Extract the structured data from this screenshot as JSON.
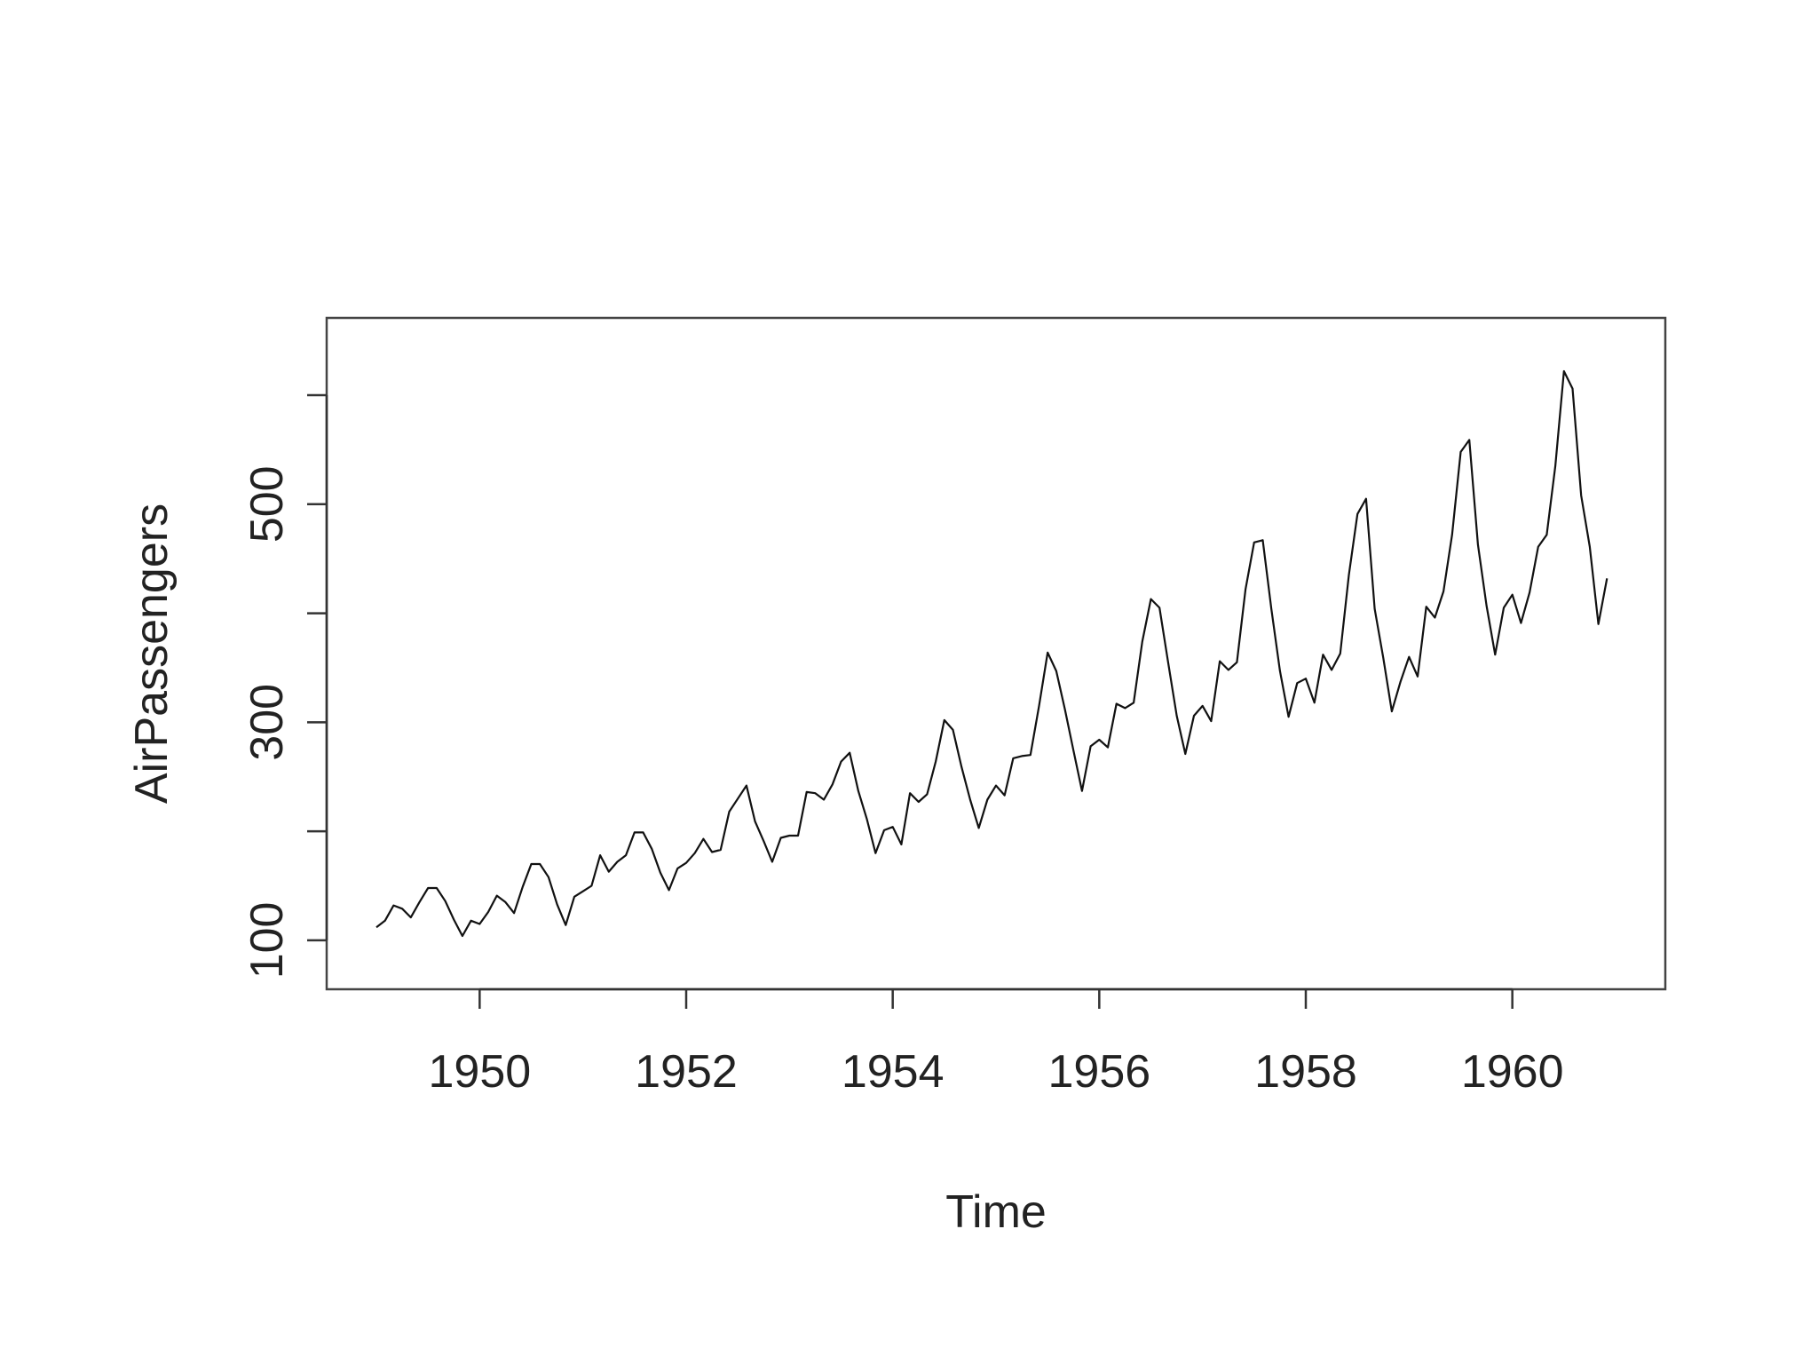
{
  "chart_data": {
    "type": "line",
    "title": "",
    "xlabel": "Time",
    "ylabel": "AirPassengers",
    "xlim": [
      1949,
      1961
    ],
    "ylim": [
      104,
      622
    ],
    "x_ticks": [
      1950,
      1952,
      1954,
      1956,
      1958,
      1960
    ],
    "x_tick_labels": [
      "1950",
      "1952",
      "1954",
      "1956",
      "1958",
      "1960"
    ],
    "y_ticks": [
      100,
      200,
      300,
      400,
      500,
      600
    ],
    "y_tick_labels": [
      "100",
      "",
      "300",
      "",
      "500",
      ""
    ],
    "grid": false,
    "legend": "none",
    "x_start": "1949-01",
    "frequency": "monthly",
    "series": [
      {
        "values": [
          112,
          118,
          132,
          129,
          121,
          135,
          148,
          148,
          136,
          119,
          104,
          118,
          115,
          126,
          141,
          135,
          125,
          149,
          170,
          170,
          158,
          133,
          114,
          140,
          145,
          150,
          178,
          163,
          172,
          178,
          199,
          199,
          184,
          162,
          146,
          166,
          171,
          180,
          193,
          181,
          183,
          218,
          230,
          242,
          209,
          191,
          172,
          194,
          196,
          196,
          236,
          235,
          229,
          243,
          264,
          272,
          237,
          211,
          180,
          201,
          204,
          188,
          235,
          227,
          234,
          264,
          302,
          293,
          259,
          229,
          203,
          229,
          242,
          233,
          267,
          269,
          270,
          315,
          364,
          347,
          312,
          274,
          237,
          278,
          284,
          277,
          317,
          313,
          318,
          374,
          413,
          405,
          355,
          306,
          271,
          306,
          315,
          301,
          356,
          348,
          355,
          422,
          465,
          467,
          404,
          347,
          305,
          336,
          340,
          318,
          362,
          348,
          363,
          435,
          491,
          505,
          404,
          359,
          310,
          337,
          360,
          342,
          406,
          396,
          420,
          472,
          548,
          559,
          463,
          407,
          362,
          405,
          417,
          391,
          419,
          461,
          472,
          535,
          622,
          606,
          508,
          461,
          390,
          432
        ]
      }
    ]
  }
}
